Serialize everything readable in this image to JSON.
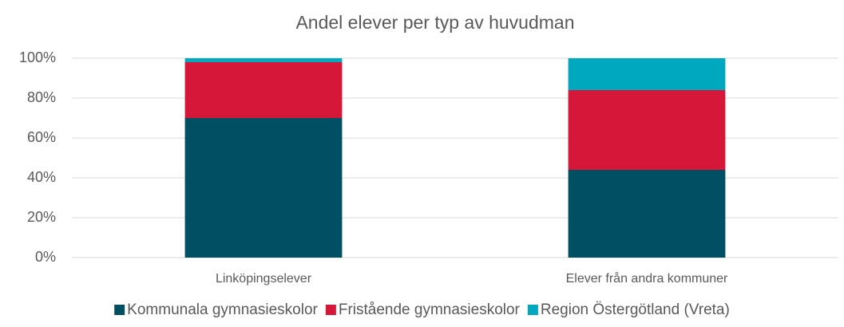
{
  "chart_data": {
    "type": "stacked_bar",
    "title": "Andel elever per typ av huvudman",
    "categories": [
      "Linköpingselever",
      "Elever från andra kommuner"
    ],
    "series": [
      {
        "name": "Kommunala gymnasieskolor",
        "color": "#004f63",
        "values": [
          70,
          44
        ]
      },
      {
        "name": "Fristående gymnasieskolor",
        "color": "#d5173a",
        "values": [
          28,
          40
        ]
      },
      {
        "name": "Region Östergötland (Vreta)",
        "color": "#00a8bf",
        "values": [
          2,
          16
        ]
      }
    ],
    "ylim": [
      0,
      100
    ],
    "yticks": [
      {
        "value": 0,
        "label": "0%"
      },
      {
        "value": 20,
        "label": "20%"
      },
      {
        "value": 40,
        "label": "40%"
      },
      {
        "value": 60,
        "label": "60%"
      },
      {
        "value": 80,
        "label": "80%"
      },
      {
        "value": 100,
        "label": "100%"
      }
    ],
    "grid": true,
    "legend": "bottom"
  }
}
